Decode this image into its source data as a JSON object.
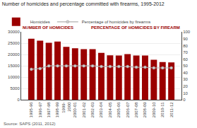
{
  "chart_data": {
    "type": "bar",
    "title": "Number of homicides and percentage committed with firearms, 1995-2012",
    "categories": [
      "1995-96",
      "1996-97",
      "1997-98",
      "1998-99",
      "1999-\n2000",
      "2000-01",
      "2001-02",
      "2002-03",
      "2003-04",
      "2004-05",
      "2005-06",
      "2006-07",
      "2007-08",
      "2008-09",
      "2009-10",
      "2010-11",
      "2011-12"
    ],
    "series": [
      {
        "name": "Homicides",
        "type": "bar",
        "color": "#9B0000",
        "values": [
          27000,
          26200,
          25200,
          25800,
          23400,
          22800,
          22400,
          22400,
          20800,
          19700,
          19600,
          20200,
          19600,
          19600,
          17700,
          16700,
          16500
        ]
      },
      {
        "name": "Percentage of homicides by firearms",
        "type": "line",
        "axis": "y2",
        "color": "#b0b0b0",
        "marker": "circle",
        "values": [
          45,
          46,
          50,
          50,
          50,
          50,
          50,
          50,
          49,
          49,
          49,
          49,
          48,
          48,
          47,
          47,
          47
        ]
      }
    ],
    "ylabel": "NUMBER OF HOMICIDES",
    "y2label": "PERCENTAGE OF HOMICIDES BY FIREARM",
    "annotations": [
      "Source: SAPS (2011, 2012)"
    ],
    "ylim": [
      0,
      30000
    ],
    "yticks": [
      0,
      5000,
      10000,
      15000,
      20000,
      25000,
      30000
    ],
    "y2lim": [
      0,
      100
    ],
    "y2ticks": [
      0,
      10,
      20,
      30,
      40,
      50,
      60,
      70,
      80,
      90,
      100
    ],
    "grid": true,
    "legend": "upper left"
  }
}
